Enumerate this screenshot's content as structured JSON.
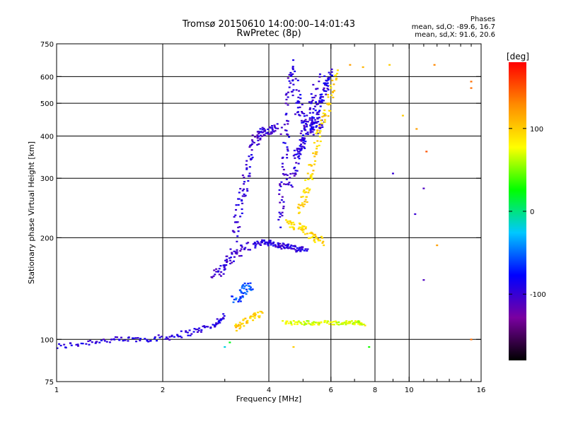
{
  "header": {
    "title_line1": "Tromsø 20150610 14:00:00–14:01:43",
    "title_line2": "RwPretec (8p)",
    "phases_label": "Phases",
    "phases_o": "mean, sd,O: -89.6, 16.7",
    "phases_x": "mean, sd,X:  91.6, 20.6"
  },
  "colorbar": {
    "label": "[deg]",
    "range": [
      -180,
      180
    ],
    "ticks": [
      {
        "value": 100,
        "label": "100"
      },
      {
        "value": 0,
        "label": "0"
      },
      {
        "value": -100,
        "label": "-100"
      }
    ],
    "colors": [
      "#000000",
      "#7a00a0",
      "#0000ff",
      "#00c8ff",
      "#00ff00",
      "#ffff00",
      "#ff8c00",
      "#ff0000"
    ]
  },
  "chart_data": {
    "type": "scatter",
    "title": "Tromsø 20150610 14:00:00–14:01:43",
    "subtitle": "RwPretec (8p)",
    "xlabel": "Frequency [MHz]",
    "ylabel": "Stationary phase Virtual Height [km]",
    "xscale": "log",
    "yscale": "log",
    "xlim": [
      1,
      16
    ],
    "ylim": [
      75,
      750
    ],
    "xticks": [
      {
        "value": 1,
        "label": "1"
      },
      {
        "value": 2,
        "label": "2"
      },
      {
        "value": 4,
        "label": "4"
      },
      {
        "value": 6,
        "label": "6"
      },
      {
        "value": 8,
        "label": "8"
      },
      {
        "value": 10,
        "label": "10"
      },
      {
        "value": 16,
        "label": "16"
      }
    ],
    "xminor": [
      3,
      5,
      7,
      9,
      11,
      12,
      13,
      14,
      15
    ],
    "yticks": [
      {
        "value": 75,
        "label": "75"
      },
      {
        "value": 100,
        "label": "100"
      },
      {
        "value": 200,
        "label": "200"
      },
      {
        "value": 300,
        "label": "300"
      },
      {
        "value": 400,
        "label": "400"
      },
      {
        "value": 500,
        "label": "500"
      },
      {
        "value": 600,
        "label": "600"
      },
      {
        "value": 750,
        "label": "750"
      }
    ],
    "grid_x": [
      2,
      4,
      6,
      8,
      10
    ],
    "grid_y": [
      100,
      200,
      300,
      400,
      500,
      600
    ],
    "traces": [
      {
        "phase": -95,
        "x": [
          1.0,
          1.3,
          1.6,
          2.0,
          2.4,
          2.8,
          3.0
        ],
        "y": [
          95,
          99,
          100,
          101,
          105,
          110,
          118
        ],
        "spread": 0.03
      },
      {
        "phase": -100,
        "x": [
          2.8,
          3.0,
          3.2,
          3.5
        ],
        "y": [
          155,
          165,
          180,
          190
        ],
        "spread": 0.05
      },
      {
        "phase": -100,
        "x": [
          3.2,
          3.3,
          3.45,
          3.6,
          3.8,
          4.0,
          4.3
        ],
        "y": [
          200,
          250,
          300,
          380,
          410,
          415,
          420
        ],
        "spread": 0.05
      },
      {
        "phase": -95,
        "x": [
          3.6,
          3.9,
          4.2,
          4.5,
          4.8,
          5.1
        ],
        "y": [
          190,
          195,
          190,
          188,
          185,
          187
        ],
        "spread": 0.03
      },
      {
        "phase": -100,
        "x": [
          4.3,
          4.4,
          4.5,
          4.6
        ],
        "y": [
          220,
          300,
          420,
          620
        ],
        "spread": 0.04
      },
      {
        "phase": -95,
        "x": [
          4.6,
          4.8,
          5.0,
          5.3,
          5.6,
          5.8
        ],
        "y": [
          650,
          520,
          450,
          420,
          430,
          600
        ],
        "spread": 0.06
      },
      {
        "phase": -100,
        "x": [
          4.5,
          4.8,
          5.2,
          5.5
        ],
        "y": [
          280,
          340,
          460,
          600
        ],
        "spread": 0.05
      },
      {
        "phase": -90,
        "x": [
          4.8,
          5.0,
          5.3,
          5.5,
          5.8,
          6.0
        ],
        "y": [
          350,
          380,
          430,
          480,
          560,
          620
        ],
        "spread": 0.04
      },
      {
        "phase": 95,
        "x": [
          4.9,
          5.1,
          5.3,
          5.6,
          5.9,
          6.2
        ],
        "y": [
          240,
          270,
          330,
          410,
          500,
          620
        ],
        "spread": 0.04
      },
      {
        "phase": 95,
        "x": [
          4.5,
          4.9,
          5.3,
          5.7
        ],
        "y": [
          220,
          215,
          200,
          195
        ],
        "spread": 0.04
      },
      {
        "phase": 100,
        "x": [
          3.2,
          3.5,
          3.8
        ],
        "y": [
          108,
          114,
          120
        ],
        "spread": 0.03
      },
      {
        "phase": 70,
        "x": [
          4.4,
          5.0,
          5.6,
          6.4,
          7.0,
          7.4
        ],
        "y": [
          112,
          112,
          112,
          112,
          112,
          112
        ],
        "spread": 0.02
      },
      {
        "phase": -60,
        "x": [
          3.2,
          3.4,
          3.6
        ],
        "y": [
          130,
          140,
          145
        ],
        "spread": 0.05
      }
    ],
    "scattered_points": [
      {
        "x": 6.8,
        "y": 650,
        "phase": 120
      },
      {
        "x": 7.4,
        "y": 640,
        "phase": 110
      },
      {
        "x": 8.8,
        "y": 650,
        "phase": 100
      },
      {
        "x": 9.6,
        "y": 460,
        "phase": 100
      },
      {
        "x": 10.5,
        "y": 420,
        "phase": 120
      },
      {
        "x": 11.8,
        "y": 650,
        "phase": 130
      },
      {
        "x": 11.2,
        "y": 360,
        "phase": 150
      },
      {
        "x": 11.0,
        "y": 280,
        "phase": -110
      },
      {
        "x": 10.4,
        "y": 235,
        "phase": -100
      },
      {
        "x": 9.0,
        "y": 310,
        "phase": -100
      },
      {
        "x": 12.0,
        "y": 190,
        "phase": 120
      },
      {
        "x": 11.0,
        "y": 150,
        "phase": -110
      },
      {
        "x": 15.0,
        "y": 580,
        "phase": 140
      },
      {
        "x": 15.0,
        "y": 555,
        "phase": 140
      },
      {
        "x": 15.0,
        "y": 100,
        "phase": 140
      },
      {
        "x": 7.5,
        "y": 110,
        "phase": 90
      },
      {
        "x": 7.7,
        "y": 95,
        "phase": 30
      },
      {
        "x": 4.7,
        "y": 95,
        "phase": 100
      },
      {
        "x": 3.0,
        "y": 95,
        "phase": -20
      },
      {
        "x": 3.1,
        "y": 98,
        "phase": 20
      }
    ]
  }
}
